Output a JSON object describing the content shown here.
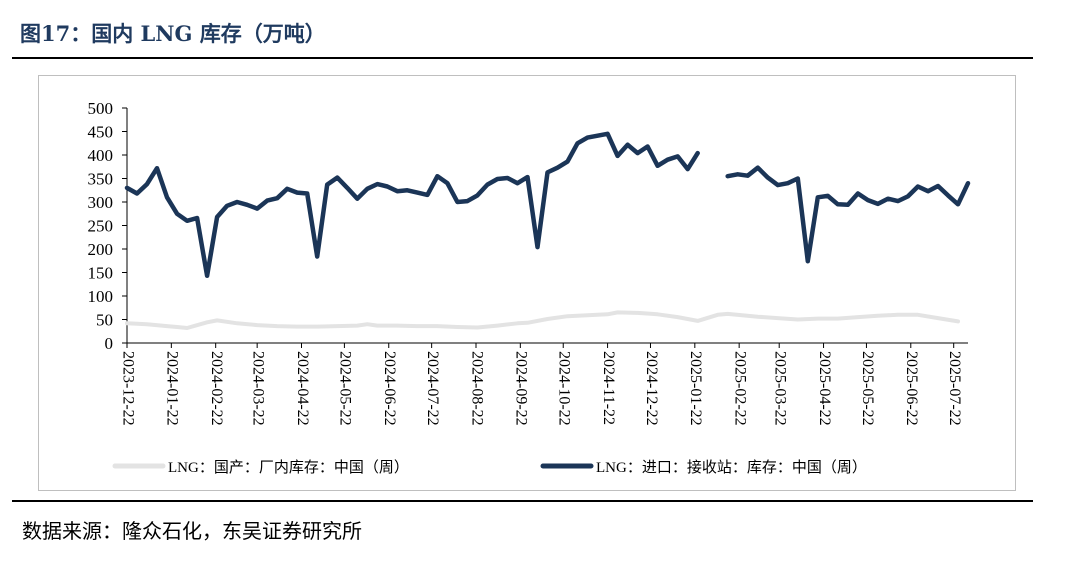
{
  "header": {
    "title": "图17：国内 LNG 库存（万吨）"
  },
  "footer": {
    "source": "数据来源：隆众石化，东吴证券研究所"
  },
  "colors": {
    "domestic": "#e3e3e3",
    "import": "#1b3557",
    "title": "#1f3a5f"
  },
  "chart_data": {
    "type": "line",
    "title": "",
    "xlabel": "",
    "ylabel": "",
    "ylim": [
      0,
      500
    ],
    "y_ticks": [
      0,
      50,
      100,
      150,
      200,
      250,
      300,
      350,
      400,
      450,
      500
    ],
    "x_start": "2023-12-22",
    "x_end": "2025-08-01",
    "x_tick_labels": [
      "2023-12-22",
      "2024-01-22",
      "2024-02-22",
      "2024-03-22",
      "2024-04-22",
      "2024-05-22",
      "2024-06-22",
      "2024-07-22",
      "2024-08-22",
      "2024-09-22",
      "2024-10-22",
      "2024-11-22",
      "2024-12-22",
      "2025-01-22",
      "2025-02-22",
      "2025-03-22",
      "2025-04-22",
      "2025-05-22",
      "2025-06-22",
      "2025-07-22"
    ],
    "legend_position": "bottom",
    "series": [
      {
        "name": "LNG：国产：厂内库存：中国（周）",
        "color": "#e3e3e3",
        "points": [
          [
            "2023-12-22",
            42
          ],
          [
            "2024-01-05",
            40
          ],
          [
            "2024-01-19",
            36
          ],
          [
            "2024-01-26",
            34
          ],
          [
            "2024-02-02",
            32
          ],
          [
            "2024-02-16",
            44
          ],
          [
            "2024-02-23",
            48
          ],
          [
            "2024-03-08",
            42
          ],
          [
            "2024-03-22",
            38
          ],
          [
            "2024-04-05",
            36
          ],
          [
            "2024-04-19",
            35
          ],
          [
            "2024-05-03",
            35
          ],
          [
            "2024-05-17",
            36
          ],
          [
            "2024-05-31",
            37
          ],
          [
            "2024-06-07",
            40
          ],
          [
            "2024-06-14",
            37
          ],
          [
            "2024-06-28",
            37
          ],
          [
            "2024-07-12",
            36
          ],
          [
            "2024-07-26",
            36
          ],
          [
            "2024-08-09",
            34
          ],
          [
            "2024-08-23",
            33
          ],
          [
            "2024-09-06",
            37
          ],
          [
            "2024-09-20",
            42
          ],
          [
            "2024-09-27",
            43
          ],
          [
            "2024-10-11",
            51
          ],
          [
            "2024-10-25",
            57
          ],
          [
            "2024-11-08",
            59
          ],
          [
            "2024-11-22",
            61
          ],
          [
            "2024-11-29",
            65
          ],
          [
            "2024-12-13",
            64
          ],
          [
            "2024-12-27",
            61
          ],
          [
            "2025-01-10",
            55
          ],
          [
            "2025-01-24",
            47
          ],
          [
            "2025-02-07",
            60
          ],
          [
            "2025-02-14",
            62
          ],
          [
            "2025-03-07",
            56
          ],
          [
            "2025-03-21",
            53
          ],
          [
            "2025-04-04",
            50
          ],
          [
            "2025-04-18",
            52
          ],
          [
            "2025-05-02",
            52
          ],
          [
            "2025-05-16",
            55
          ],
          [
            "2025-05-30",
            58
          ],
          [
            "2025-06-13",
            60
          ],
          [
            "2025-06-27",
            60
          ],
          [
            "2025-07-11",
            53
          ],
          [
            "2025-07-25",
            46
          ]
        ]
      },
      {
        "name": "LNG：进口：接收站：库存：中国（周）",
        "color": "#1b3557",
        "points": [
          [
            "2023-12-22",
            330
          ],
          [
            "2023-12-29",
            318
          ],
          [
            "2024-01-05",
            338
          ],
          [
            "2024-01-12",
            372
          ],
          [
            "2024-01-19",
            310
          ],
          [
            "2024-01-26",
            275
          ],
          [
            "2024-02-02",
            260
          ],
          [
            "2024-02-09",
            266
          ],
          [
            "2024-02-16",
            143
          ],
          [
            "2024-02-23",
            268
          ],
          [
            "2024-03-01",
            292
          ],
          [
            "2024-03-08",
            300
          ],
          [
            "2024-03-15",
            294
          ],
          [
            "2024-03-22",
            286
          ],
          [
            "2024-03-29",
            303
          ],
          [
            "2024-04-05",
            308
          ],
          [
            "2024-04-12",
            328
          ],
          [
            "2024-04-19",
            320
          ],
          [
            "2024-04-26",
            318
          ],
          [
            "2024-05-03",
            184
          ],
          [
            "2024-05-10",
            337
          ],
          [
            "2024-05-17",
            352
          ],
          [
            "2024-05-24",
            330
          ],
          [
            "2024-05-31",
            307
          ],
          [
            "2024-06-07",
            328
          ],
          [
            "2024-06-14",
            338
          ],
          [
            "2024-06-21",
            333
          ],
          [
            "2024-06-28",
            323
          ],
          [
            "2024-07-05",
            325
          ],
          [
            "2024-07-12",
            320
          ],
          [
            "2024-07-19",
            315
          ],
          [
            "2024-07-26",
            355
          ],
          [
            "2024-08-02",
            340
          ],
          [
            "2024-08-09",
            300
          ],
          [
            "2024-08-16",
            302
          ],
          [
            "2024-08-23",
            314
          ],
          [
            "2024-08-30",
            337
          ],
          [
            "2024-09-06",
            349
          ],
          [
            "2024-09-13",
            351
          ],
          [
            "2024-09-20",
            340
          ],
          [
            "2024-09-27",
            353
          ],
          [
            "2024-10-04",
            204
          ],
          [
            "2024-10-11",
            363
          ],
          [
            "2024-10-18",
            373
          ],
          [
            "2024-10-25",
            386
          ],
          [
            "2024-11-01",
            425
          ],
          [
            "2024-11-08",
            437
          ],
          [
            "2024-11-15",
            441
          ],
          [
            "2024-11-22",
            445
          ],
          [
            "2024-11-29",
            398
          ],
          [
            "2024-12-06",
            422
          ],
          [
            "2024-12-13",
            404
          ],
          [
            "2024-12-20",
            418
          ],
          [
            "2024-12-27",
            377
          ],
          [
            "2025-01-03",
            390
          ],
          [
            "2025-01-10",
            397
          ],
          [
            "2025-01-17",
            370
          ],
          [
            "2025-01-24",
            404
          ],
          null,
          [
            "2025-02-14",
            355
          ],
          [
            "2025-02-21",
            359
          ],
          [
            "2025-02-28",
            356
          ],
          [
            "2025-03-07",
            373
          ],
          [
            "2025-03-14",
            352
          ],
          [
            "2025-03-21",
            336
          ],
          [
            "2025-03-28",
            340
          ],
          [
            "2025-04-04",
            350
          ],
          [
            "2025-04-11",
            174
          ],
          [
            "2025-04-18",
            310
          ],
          [
            "2025-04-25",
            313
          ],
          [
            "2025-05-02",
            295
          ],
          [
            "2025-05-09",
            294
          ],
          [
            "2025-05-16",
            318
          ],
          [
            "2025-05-23",
            304
          ],
          [
            "2025-05-30",
            296
          ],
          [
            "2025-06-06",
            307
          ],
          [
            "2025-06-13",
            302
          ],
          [
            "2025-06-20",
            312
          ],
          [
            "2025-06-27",
            333
          ],
          [
            "2025-07-04",
            323
          ],
          [
            "2025-07-11",
            334
          ],
          [
            "2025-07-18",
            314
          ],
          [
            "2025-07-25",
            295
          ],
          [
            "2025-08-01",
            340
          ]
        ]
      }
    ]
  }
}
